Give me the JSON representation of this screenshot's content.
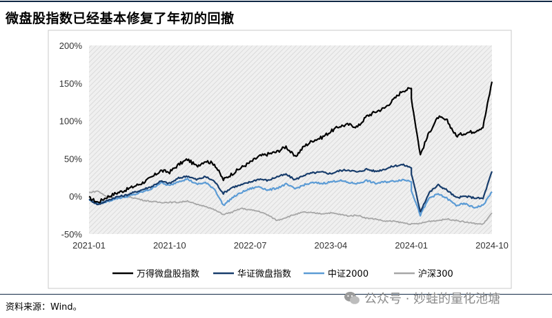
{
  "header": {
    "title": "微盘股指数已经基本修复了年初的回撤"
  },
  "footer": {
    "source": "资料来源：Wind。",
    "watermark": "公众号 · 妙蛙的量化池塘"
  },
  "chart_data": {
    "type": "line",
    "title": "",
    "xlabel": "",
    "ylabel": "",
    "ylim": [
      -0.5,
      2.0
    ],
    "yticks": [
      "200%",
      "150%",
      "100%",
      "50%",
      "0%",
      "-50%"
    ],
    "yticks_values": [
      2.0,
      1.5,
      1.0,
      0.5,
      0.0,
      -0.5
    ],
    "xticks": [
      "2021-01",
      "2021-10",
      "2022-07",
      "2023-04",
      "2024-01",
      "2024-10"
    ],
    "xlim": [
      "2021-01",
      "2024-10"
    ],
    "grid": false,
    "legend": "bottom",
    "colors": {
      "plot_bg": "#f0f0f0",
      "hatch": "#dadada",
      "frame": "#c8c8c8"
    },
    "series": [
      {
        "name": "万得微盘股指数",
        "color": "#000000",
        "points": [
          [
            "2021-01",
            -0.02
          ],
          [
            "2021-02",
            -0.08
          ],
          [
            "2021-03",
            -0.01
          ],
          [
            "2021-04",
            0.04
          ],
          [
            "2021-05",
            0.08
          ],
          [
            "2021-06",
            0.13
          ],
          [
            "2021-07",
            0.18
          ],
          [
            "2021-08",
            0.25
          ],
          [
            "2021-09",
            0.34
          ],
          [
            "2021-10",
            0.32
          ],
          [
            "2021-11",
            0.42
          ],
          [
            "2021-12",
            0.49
          ],
          [
            "2022-01",
            0.4
          ],
          [
            "2022-02",
            0.47
          ],
          [
            "2022-03",
            0.43
          ],
          [
            "2022-04",
            0.22
          ],
          [
            "2022-05",
            0.3
          ],
          [
            "2022-06",
            0.38
          ],
          [
            "2022-07",
            0.45
          ],
          [
            "2022-08",
            0.53
          ],
          [
            "2022-09",
            0.56
          ],
          [
            "2022-10",
            0.59
          ],
          [
            "2022-11",
            0.66
          ],
          [
            "2022-12",
            0.52
          ],
          [
            "2023-01",
            0.66
          ],
          [
            "2023-02",
            0.74
          ],
          [
            "2023-03",
            0.78
          ],
          [
            "2023-04",
            0.86
          ],
          [
            "2023-05",
            0.93
          ],
          [
            "2023-06",
            0.95
          ],
          [
            "2023-07",
            0.92
          ],
          [
            "2023-08",
            1.06
          ],
          [
            "2023-09",
            1.12
          ],
          [
            "2023-10",
            1.17
          ],
          [
            "2023-11",
            1.28
          ],
          [
            "2023-12",
            1.4
          ],
          [
            "2024-01",
            1.43
          ],
          [
            "2024-01",
            1.3
          ],
          [
            "2024-02",
            0.55
          ],
          [
            "2024-03",
            0.85
          ],
          [
            "2024-04",
            1.05
          ],
          [
            "2024-05",
            1.0
          ],
          [
            "2024-06",
            0.8
          ],
          [
            "2024-07",
            0.84
          ],
          [
            "2024-08",
            0.86
          ],
          [
            "2024-09",
            0.92
          ],
          [
            "2024-10",
            1.52
          ]
        ]
      },
      {
        "name": "华证微盘指数",
        "color": "#173c6b",
        "points": [
          [
            "2021-01",
            -0.04
          ],
          [
            "2021-02",
            -0.11
          ],
          [
            "2021-03",
            -0.06
          ],
          [
            "2021-04",
            -0.01
          ],
          [
            "2021-05",
            0.01
          ],
          [
            "2021-06",
            0.05
          ],
          [
            "2021-07",
            0.09
          ],
          [
            "2021-08",
            0.13
          ],
          [
            "2021-09",
            0.2
          ],
          [
            "2021-10",
            0.17
          ],
          [
            "2021-11",
            0.24
          ],
          [
            "2021-12",
            0.27
          ],
          [
            "2022-01",
            0.22
          ],
          [
            "2022-02",
            0.26
          ],
          [
            "2022-03",
            0.2
          ],
          [
            "2022-04",
            0.04
          ],
          [
            "2022-05",
            0.12
          ],
          [
            "2022-06",
            0.15
          ],
          [
            "2022-07",
            0.19
          ],
          [
            "2022-08",
            0.23
          ],
          [
            "2022-09",
            0.21
          ],
          [
            "2022-10",
            0.26
          ],
          [
            "2022-11",
            0.29
          ],
          [
            "2022-12",
            0.22
          ],
          [
            "2023-01",
            0.28
          ],
          [
            "2023-02",
            0.31
          ],
          [
            "2023-03",
            0.32
          ],
          [
            "2023-04",
            0.3
          ],
          [
            "2023-05",
            0.34
          ],
          [
            "2023-06",
            0.35
          ],
          [
            "2023-07",
            0.32
          ],
          [
            "2023-08",
            0.36
          ],
          [
            "2023-09",
            0.33
          ],
          [
            "2023-10",
            0.36
          ],
          [
            "2023-11",
            0.4
          ],
          [
            "2023-12",
            0.42
          ],
          [
            "2024-01",
            0.38
          ],
          [
            "2024-01",
            0.3
          ],
          [
            "2024-02",
            -0.2
          ],
          [
            "2024-03",
            0.05
          ],
          [
            "2024-04",
            0.15
          ],
          [
            "2024-05",
            0.08
          ],
          [
            "2024-06",
            -0.02
          ],
          [
            "2024-07",
            0.0
          ],
          [
            "2024-08",
            -0.02
          ],
          [
            "2024-09",
            -0.03
          ],
          [
            "2024-10",
            0.33
          ]
        ]
      },
      {
        "name": "中证2000",
        "color": "#5b9bd5",
        "points": [
          [
            "2021-01",
            -0.05
          ],
          [
            "2021-02",
            -0.1
          ],
          [
            "2021-03",
            -0.07
          ],
          [
            "2021-04",
            -0.03
          ],
          [
            "2021-05",
            -0.01
          ],
          [
            "2021-06",
            0.02
          ],
          [
            "2021-07",
            0.06
          ],
          [
            "2021-08",
            0.1
          ],
          [
            "2021-09",
            0.18
          ],
          [
            "2021-10",
            0.14
          ],
          [
            "2021-11",
            0.2
          ],
          [
            "2021-12",
            0.23
          ],
          [
            "2022-01",
            0.16
          ],
          [
            "2022-02",
            0.18
          ],
          [
            "2022-03",
            0.1
          ],
          [
            "2022-04",
            -0.12
          ],
          [
            "2022-05",
            -0.02
          ],
          [
            "2022-06",
            0.05
          ],
          [
            "2022-07",
            0.1
          ],
          [
            "2022-08",
            0.13
          ],
          [
            "2022-09",
            0.08
          ],
          [
            "2022-10",
            0.11
          ],
          [
            "2022-11",
            0.16
          ],
          [
            "2022-12",
            0.1
          ],
          [
            "2023-01",
            0.15
          ],
          [
            "2023-02",
            0.18
          ],
          [
            "2023-03",
            0.17
          ],
          [
            "2023-04",
            0.19
          ],
          [
            "2023-05",
            0.21
          ],
          [
            "2023-06",
            0.18
          ],
          [
            "2023-07",
            0.17
          ],
          [
            "2023-08",
            0.21
          ],
          [
            "2023-09",
            0.17
          ],
          [
            "2023-10",
            0.19
          ],
          [
            "2023-11",
            0.2
          ],
          [
            "2023-12",
            0.22
          ],
          [
            "2024-01",
            0.2
          ],
          [
            "2024-01",
            0.08
          ],
          [
            "2024-02",
            -0.25
          ],
          [
            "2024-03",
            -0.02
          ],
          [
            "2024-04",
            0.03
          ],
          [
            "2024-05",
            -0.03
          ],
          [
            "2024-06",
            -0.12
          ],
          [
            "2024-07",
            -0.1
          ],
          [
            "2024-08",
            -0.15
          ],
          [
            "2024-09",
            -0.12
          ],
          [
            "2024-10",
            0.06
          ]
        ]
      },
      {
        "name": "沪深300",
        "color": "#a6a6a6",
        "points": [
          [
            "2021-01",
            0.05
          ],
          [
            "2021-02",
            0.07
          ],
          [
            "2021-03",
            -0.01
          ],
          [
            "2021-04",
            -0.02
          ],
          [
            "2021-05",
            0.0
          ],
          [
            "2021-06",
            -0.02
          ],
          [
            "2021-07",
            -0.05
          ],
          [
            "2021-08",
            -0.07
          ],
          [
            "2021-09",
            -0.08
          ],
          [
            "2021-10",
            -0.08
          ],
          [
            "2021-11",
            -0.08
          ],
          [
            "2021-12",
            -0.06
          ],
          [
            "2022-01",
            -0.11
          ],
          [
            "2022-02",
            -0.13
          ],
          [
            "2022-03",
            -0.18
          ],
          [
            "2022-04",
            -0.24
          ],
          [
            "2022-05",
            -0.21
          ],
          [
            "2022-06",
            -0.16
          ],
          [
            "2022-07",
            -0.18
          ],
          [
            "2022-08",
            -0.2
          ],
          [
            "2022-09",
            -0.25
          ],
          [
            "2022-10",
            -0.32
          ],
          [
            "2022-11",
            -0.28
          ],
          [
            "2022-12",
            -0.24
          ],
          [
            "2023-01",
            -0.21
          ],
          [
            "2023-02",
            -0.22
          ],
          [
            "2023-03",
            -0.23
          ],
          [
            "2023-04",
            -0.22
          ],
          [
            "2023-05",
            -0.24
          ],
          [
            "2023-06",
            -0.26
          ],
          [
            "2023-07",
            -0.25
          ],
          [
            "2023-08",
            -0.29
          ],
          [
            "2023-09",
            -0.3
          ],
          [
            "2023-10",
            -0.33
          ],
          [
            "2023-11",
            -0.33
          ],
          [
            "2023-12",
            -0.35
          ],
          [
            "2024-01",
            -0.37
          ],
          [
            "2024-02",
            -0.36
          ],
          [
            "2024-03",
            -0.33
          ],
          [
            "2024-04",
            -0.32
          ],
          [
            "2024-05",
            -0.3
          ],
          [
            "2024-06",
            -0.32
          ],
          [
            "2024-07",
            -0.34
          ],
          [
            "2024-08",
            -0.36
          ],
          [
            "2024-09",
            -0.37
          ],
          [
            "2024-10",
            -0.22
          ]
        ]
      }
    ]
  }
}
